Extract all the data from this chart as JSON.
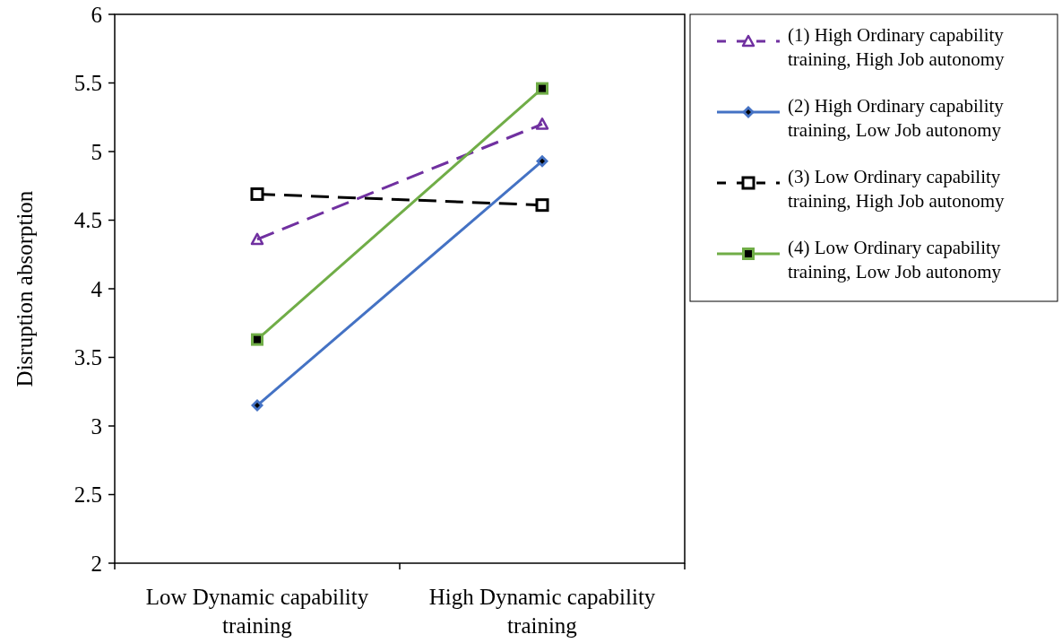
{
  "chart_data": {
    "type": "line",
    "ylabel": "Disruption absorption",
    "categories": [
      "Low Dynamic capability training",
      "High Dynamic capability training"
    ],
    "series": [
      {
        "name": "(1) High Ordinary capability training, High Job autonomy",
        "color": "#7030a0",
        "values": [
          4.36,
          5.2
        ],
        "marker": "triangle",
        "line_style": "dashed"
      },
      {
        "name": "(2) High Ordinary capability training, Low Job autonomy",
        "color": "#4472c4",
        "values": [
          3.15,
          4.93
        ],
        "marker": "diamond",
        "line_style": "solid"
      },
      {
        "name": "(3) Low Ordinary capability training, High Job autonomy",
        "color": "#000000",
        "values": [
          4.69,
          4.61
        ],
        "marker": "square",
        "line_style": "dashed"
      },
      {
        "name": "(4) Low Ordinary capability training, Low Job autonomy",
        "color": "#70ad47",
        "values": [
          3.63,
          5.46
        ],
        "marker": "square",
        "line_style": "solid"
      }
    ],
    "ylim": [
      2,
      6
    ],
    "yticks": [
      2,
      2.5,
      3,
      3.5,
      4,
      4.5,
      5,
      5.5,
      6
    ],
    "grid": false,
    "legend": "right"
  }
}
